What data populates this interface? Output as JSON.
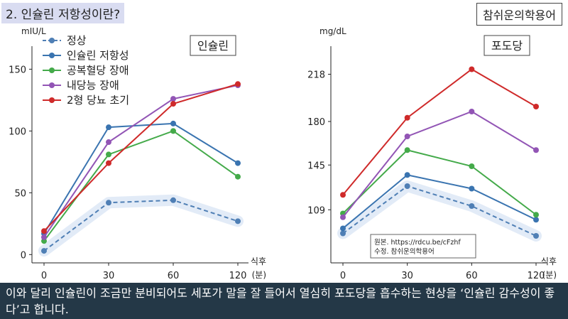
{
  "header": {
    "title": "2. 인슐린 저항성이란?",
    "brand": "참쉬운의학용어"
  },
  "caption": "이와 달리 인슐린이 조금만 분비되어도 세포가 말을 잘 들어서 열심히 포도당을 흡수하는 현상을 ‘인슐린 감수성이 좋다’고 합니다.",
  "source_note": {
    "line1": "원본. https://rdcu.be/cFzhf",
    "line2": "수정. 참쉬운의학용어"
  },
  "colors": {
    "normal": "#4f7fb5",
    "ir": "#3a74b0",
    "ifg": "#44aa4a",
    "igt": "#9255b5",
    "t2d": "#cf2a2a"
  },
  "chart_data": [
    {
      "type": "line",
      "title": "인슐린",
      "ylabel": "mIU/L",
      "xlabel": "식후 (분)",
      "xlabel_lines": [
        "식후",
        "(분)"
      ],
      "categories": [
        "0",
        "30",
        "60",
        "120"
      ],
      "yticks": [
        0,
        50,
        100,
        150
      ],
      "ylim": [
        -5,
        160
      ],
      "legend": "top-left",
      "series": [
        {
          "name": "정상",
          "style": "dashed",
          "color": "#4f7fb5",
          "values": [
            3,
            42,
            44,
            27
          ]
        },
        {
          "name": "인슐린 저항성",
          "style": "solid",
          "color": "#3a74b0",
          "values": [
            17,
            103,
            106,
            74
          ]
        },
        {
          "name": "공복혈당 장애",
          "style": "solid",
          "color": "#44aa4a",
          "values": [
            11,
            81,
            100,
            63
          ]
        },
        {
          "name": "내당능 장애",
          "style": "solid",
          "color": "#9255b5",
          "values": [
            14,
            91,
            126,
            137
          ]
        },
        {
          "name": "2형 당뇨 초기",
          "style": "solid",
          "color": "#cf2a2a",
          "values": [
            19,
            74,
            122,
            138
          ]
        }
      ]
    },
    {
      "type": "line",
      "title": "포도당",
      "ylabel": "mg/dL",
      "xlabel": "식후 (분)",
      "xlabel_lines": [
        "식후",
        "(분)"
      ],
      "categories": [
        "0",
        "30",
        "60",
        "120"
      ],
      "yticks": [
        109,
        145,
        180,
        218
      ],
      "ylim": [
        68,
        232
      ],
      "series": [
        {
          "name": "정상",
          "style": "dashed",
          "color": "#4f7fb5",
          "values": [
            90,
            128,
            112,
            88
          ]
        },
        {
          "name": "인슐린 저항성",
          "style": "solid",
          "color": "#3a74b0",
          "values": [
            94,
            137,
            126,
            101
          ]
        },
        {
          "name": "공복혈당 장애",
          "style": "solid",
          "color": "#44aa4a",
          "values": [
            106,
            157,
            144,
            105
          ]
        },
        {
          "name": "내당능 장애",
          "style": "solid",
          "color": "#9255b5",
          "values": [
            103,
            168,
            188,
            157
          ]
        },
        {
          "name": "2형 당뇨 초기",
          "style": "solid",
          "color": "#cf2a2a",
          "values": [
            121,
            183,
            222,
            192
          ]
        }
      ]
    }
  ]
}
